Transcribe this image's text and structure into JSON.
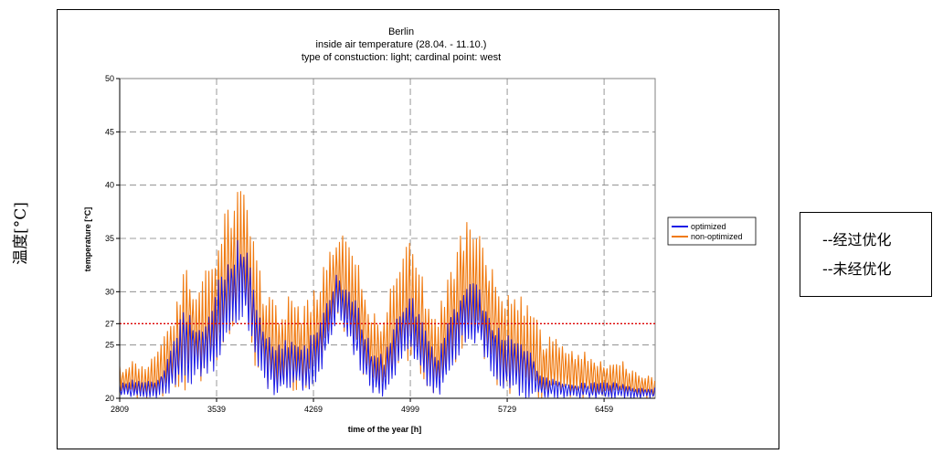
{
  "side_label": "温度[°C]",
  "legend_notes": [
    "--经过优化",
    "--未经优化"
  ],
  "chart_data": {
    "type": "line",
    "title": "Berlin",
    "subtitle": "inside air temperature (28.04. - 11.10.)",
    "subtitle2": "type of constuction: light; cardinal point: west",
    "xlabel": "time of the year [h]",
    "ylabel": "temperature [°C]",
    "xlim": [
      2809,
      6844
    ],
    "ylim": [
      20,
      50
    ],
    "x_ticks": [
      2809,
      3539,
      4269,
      4999,
      5729,
      6459
    ],
    "y_ticks": [
      20,
      25,
      27,
      30,
      35,
      40,
      45,
      50
    ],
    "y_gridlines": [
      25,
      30,
      35,
      40,
      45
    ],
    "reference_line": {
      "y": 27,
      "style": "dotted",
      "color": "#dd0000"
    },
    "legend_position": "right",
    "grid": true,
    "colors": {
      "optimized": "#1a1ae6",
      "non-optimized": "#f07a10",
      "plot_bg": "#ffffff"
    },
    "series": [
      {
        "name": "optimized",
        "envelope": {
          "x": [
            2809,
            2900,
            3000,
            3100,
            3200,
            3300,
            3400,
            3500,
            3600,
            3700,
            3750,
            3800,
            3850,
            3900,
            4000,
            4100,
            4200,
            4300,
            4400,
            4450,
            4500,
            4600,
            4700,
            4800,
            4900,
            5000,
            5100,
            5200,
            5300,
            5400,
            5500,
            5600,
            5700,
            5800,
            5900,
            6000,
            6100,
            6200,
            6300,
            6400,
            6500,
            6600,
            6700,
            6844
          ],
          "high": [
            21.5,
            21.8,
            21.5,
            22,
            25,
            29,
            27,
            29,
            33,
            35,
            35,
            32,
            29,
            27,
            25,
            26,
            25,
            27,
            30,
            32,
            31,
            29,
            25,
            24,
            28,
            30,
            27,
            24,
            28,
            31,
            31,
            28,
            26,
            26,
            25,
            22,
            22,
            21.5,
            21.5,
            21.5,
            21.5,
            21.5,
            21,
            21
          ],
          "low": [
            20,
            20,
            20,
            20,
            20.5,
            21,
            21.5,
            22,
            25,
            27,
            27.5,
            25,
            22,
            21,
            20,
            20.5,
            20.5,
            21.5,
            25,
            27.5,
            26,
            23,
            20.5,
            20,
            22.5,
            24,
            21.5,
            20,
            21.5,
            25,
            25,
            22.5,
            20.5,
            20,
            20,
            20,
            20,
            20,
            20,
            20,
            20,
            20,
            20,
            20
          ]
        }
      },
      {
        "name": "non-optimized",
        "envelope": {
          "x": [
            2809,
            2900,
            3000,
            3100,
            3200,
            3300,
            3400,
            3500,
            3600,
            3700,
            3750,
            3800,
            3850,
            3900,
            4000,
            4100,
            4200,
            4300,
            4400,
            4450,
            4500,
            4600,
            4700,
            4800,
            4900,
            5000,
            5100,
            5200,
            5300,
            5400,
            5500,
            5600,
            5700,
            5800,
            5900,
            6000,
            6100,
            6200,
            6300,
            6400,
            6500,
            6600,
            6700,
            6844
          ],
          "high": [
            23,
            23.5,
            23,
            24.5,
            28,
            33,
            31,
            33,
            38,
            40,
            40.3,
            37,
            33,
            31,
            29,
            30,
            29,
            31,
            35,
            36.5,
            36,
            34,
            29,
            28,
            33,
            35,
            31,
            28,
            33,
            36.5,
            36.5,
            33,
            30,
            30,
            29,
            26,
            26,
            25,
            24.5,
            24,
            23.5,
            23.5,
            22.5,
            22
          ]
        }
      }
    ]
  }
}
